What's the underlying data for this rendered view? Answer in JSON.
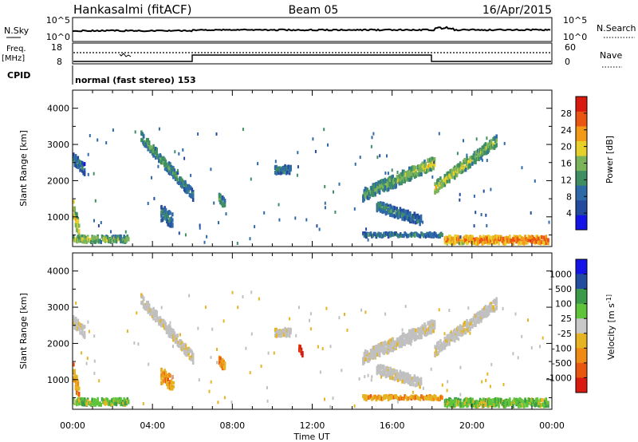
{
  "header": {
    "station": "Hankasalmi (fitACF)",
    "beam": "Beam 05",
    "date": "16/Apr/2015"
  },
  "status_panels": {
    "nsky_label": "N.Sky",
    "nsky_ticks": [
      "10^5",
      "10^0"
    ],
    "nsearch_label": "N.Search",
    "nsearch_ticks": [
      "10^5",
      "10^0"
    ],
    "freq_label_1": "Freq.",
    "freq_label_2": "[MHz]",
    "freq_ticks": [
      "18",
      "8"
    ],
    "nave_label": "Nave",
    "nave_ticks": [
      "60",
      "0"
    ],
    "cpid_label": "CPID",
    "cpid_text": "normal (fast stereo) 153"
  },
  "colors": {
    "power_scale": [
      "#1414e6",
      "#234a9c",
      "#2e6aa8",
      "#3e8e62",
      "#7ab35a",
      "#e8d02a",
      "#f29a18",
      "#ea5512",
      "#d81a10"
    ],
    "velocity_scale": [
      "#1414e6",
      "#244c9e",
      "#3b9a4a",
      "#5fc43a",
      "#c8c8c8",
      "#e6b422",
      "#ef8a14",
      "#e9560f",
      "#d81a10"
    ],
    "ground_scatter": "#c0c0c0"
  },
  "chart_data": [
    {
      "type": "heatmap",
      "name": "power-panel",
      "ylabel": "Slant Range [km]",
      "yticks": [
        "1000",
        "2000",
        "3000",
        "4000"
      ],
      "ylim": [
        180,
        4500
      ],
      "xlim": [
        0,
        24
      ],
      "xticks": [
        "00:00",
        "04:00",
        "08:00",
        "12:00",
        "16:00",
        "20:00",
        "00:00"
      ],
      "colorbar_label": "Power [dB]",
      "colorbar_ticks": [
        "4",
        "8",
        "12",
        "16",
        "20",
        "24",
        "28"
      ],
      "vmin": 0,
      "vmax": 32,
      "regions": [
        {
          "t0": 3.4,
          "t1": 6.0,
          "r0": 3200,
          "r1": 1600,
          "w": 280,
          "v0": 14,
          "v1": 10
        },
        {
          "t0": 14.5,
          "t1": 18.1,
          "r0": 1600,
          "r1": 2500,
          "w": 320,
          "v0": 12,
          "v1": 18
        },
        {
          "t0": 18.1,
          "t1": 21.2,
          "r0": 1800,
          "r1": 3100,
          "w": 300,
          "v0": 18,
          "v1": 14
        },
        {
          "t0": 15.2,
          "t1": 17.4,
          "r0": 1300,
          "r1": 900,
          "w": 260,
          "v0": 12,
          "v1": 9
        },
        {
          "t0": 0.0,
          "t1": 0.6,
          "r0": 2600,
          "r1": 2300,
          "w": 300,
          "v0": 10,
          "v1": 9
        },
        {
          "t0": 0.0,
          "t1": 2.8,
          "r0": 380,
          "r1": 380,
          "w": 160,
          "v0": 18,
          "v1": 14
        },
        {
          "t0": 14.5,
          "t1": 18.5,
          "r0": 500,
          "r1": 500,
          "w": 100,
          "v0": 10,
          "v1": 10
        },
        {
          "t0": 18.6,
          "t1": 23.8,
          "r0": 360,
          "r1": 360,
          "w": 200,
          "v0": 22,
          "v1": 26
        },
        {
          "t0": 7.3,
          "t1": 7.6,
          "r0": 1500,
          "r1": 1300,
          "w": 300,
          "v0": 12,
          "v1": 12
        },
        {
          "t0": 10.1,
          "t1": 10.9,
          "r0": 2300,
          "r1": 2300,
          "w": 200,
          "v0": 10,
          "v1": 10
        },
        {
          "t0": 0.0,
          "t1": 0.3,
          "r0": 1200,
          "r1": 600,
          "w": 500,
          "v0": 20,
          "v1": 16
        },
        {
          "t0": 4.4,
          "t1": 5.0,
          "r0": 1100,
          "r1": 900,
          "w": 400,
          "v0": 10,
          "v1": 10
        }
      ]
    },
    {
      "type": "heatmap",
      "name": "velocity-panel",
      "ylabel": "Slant Range [km]",
      "yticks": [
        "1000",
        "2000",
        "3000",
        "4000"
      ],
      "ylim": [
        180,
        4500
      ],
      "xlim": [
        0,
        24
      ],
      "xticks": [
        "00:00",
        "04:00",
        "08:00",
        "12:00",
        "16:00",
        "20:00",
        "00:00"
      ],
      "xlabel": "Time UT",
      "colorbar_label": "Velocity [m s^-1]",
      "colorbar_ticks": [
        "1000",
        "500",
        "100",
        "25",
        "-25",
        "-100",
        "-500",
        "-1000"
      ],
      "regions": [
        {
          "t0": 3.4,
          "t1": 6.0,
          "r0": 3200,
          "r1": 1600,
          "w": 280,
          "kind": "ground"
        },
        {
          "t0": 14.5,
          "t1": 18.1,
          "r0": 1600,
          "r1": 2500,
          "w": 320,
          "kind": "ground"
        },
        {
          "t0": 18.1,
          "t1": 21.2,
          "r0": 1800,
          "r1": 3100,
          "w": 300,
          "kind": "ground"
        },
        {
          "t0": 15.2,
          "t1": 17.4,
          "r0": 1300,
          "r1": 900,
          "w": 260,
          "kind": "ground"
        },
        {
          "t0": 0.0,
          "t1": 0.6,
          "r0": 2600,
          "r1": 2300,
          "w": 300,
          "kind": "ground"
        },
        {
          "t0": 0.0,
          "t1": 2.8,
          "r0": 380,
          "r1": 380,
          "w": 160,
          "kind": "green"
        },
        {
          "t0": 14.5,
          "t1": 18.5,
          "r0": 500,
          "r1": 500,
          "w": 100,
          "kind": "orange"
        },
        {
          "t0": 18.6,
          "t1": 23.8,
          "r0": 360,
          "r1": 360,
          "w": 200,
          "kind": "green"
        },
        {
          "t0": 7.3,
          "t1": 7.6,
          "r0": 1500,
          "r1": 1300,
          "w": 300,
          "kind": "orange"
        },
        {
          "t0": 10.1,
          "t1": 10.9,
          "r0": 2300,
          "r1": 2300,
          "w": 200,
          "kind": "ground"
        },
        {
          "t0": 0.0,
          "t1": 0.3,
          "r0": 1200,
          "r1": 600,
          "w": 500,
          "kind": "orange"
        },
        {
          "t0": 4.4,
          "t1": 5.0,
          "r0": 1100,
          "r1": 900,
          "w": 400,
          "kind": "orange"
        },
        {
          "t0": 11.3,
          "t1": 11.5,
          "r0": 1900,
          "r1": 1700,
          "w": 200,
          "kind": "red"
        }
      ]
    }
  ]
}
